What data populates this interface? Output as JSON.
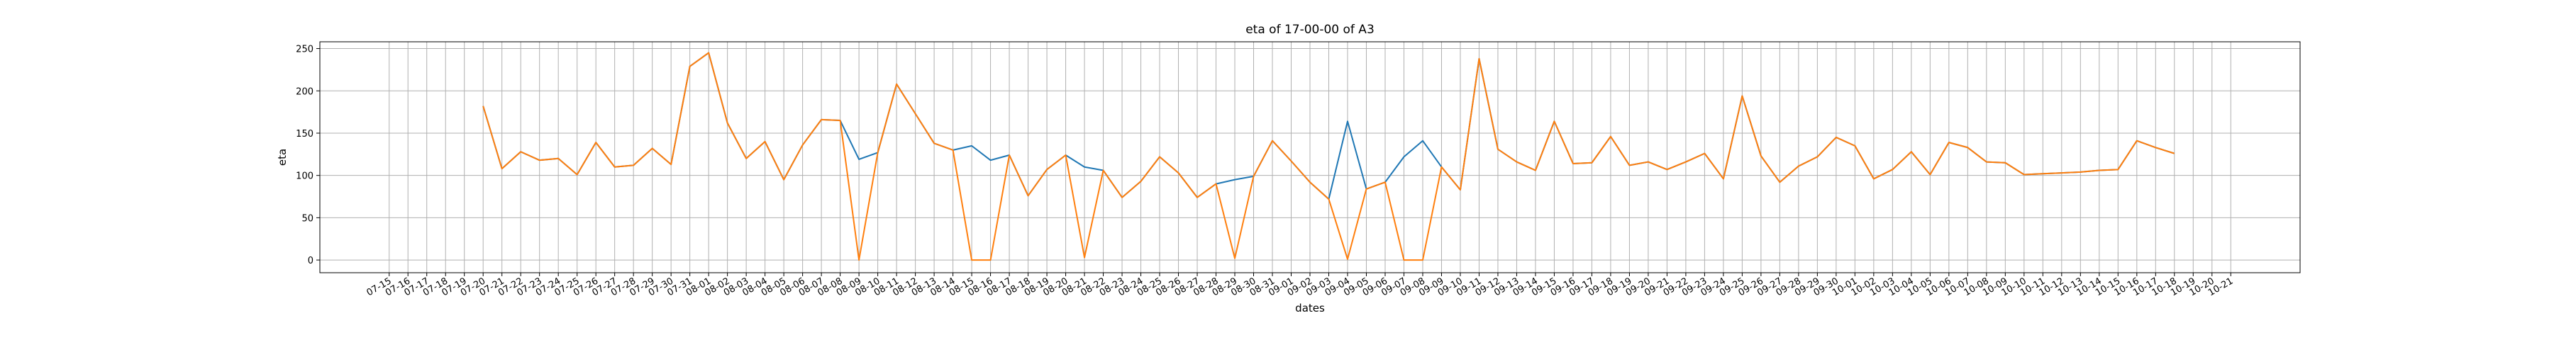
{
  "chart_data": {
    "type": "line",
    "title": "eta of 17-00-00 of A3",
    "xlabel": "dates",
    "ylabel": "eta",
    "grid": true,
    "ylim": [
      -15,
      258
    ],
    "yticks": [
      0,
      50,
      100,
      150,
      200,
      250
    ],
    "categories": [
      "07-15",
      "07-16",
      "07-17",
      "07-18",
      "07-19",
      "07-20",
      "07-21",
      "07-22",
      "07-23",
      "07-24",
      "07-25",
      "07-26",
      "07-27",
      "07-28",
      "07-29",
      "07-30",
      "07-31",
      "08-01",
      "08-02",
      "08-03",
      "08-04",
      "08-05",
      "08-06",
      "08-07",
      "08-08",
      "08-09",
      "08-10",
      "08-11",
      "08-12",
      "08-13",
      "08-14",
      "08-15",
      "08-16",
      "08-17",
      "08-18",
      "08-19",
      "08-20",
      "08-21",
      "08-22",
      "08-23",
      "08-24",
      "08-25",
      "08-26",
      "08-27",
      "08-28",
      "08-29",
      "08-30",
      "08-31",
      "09-01",
      "09-02",
      "09-03",
      "09-04",
      "09-05",
      "09-06",
      "09-07",
      "09-08",
      "09-09",
      "09-10",
      "09-11",
      "09-12",
      "09-13",
      "09-14",
      "09-15",
      "09-16",
      "09-17",
      "09-18",
      "09-19",
      "09-20",
      "09-21",
      "09-22",
      "09-23",
      "09-24",
      "09-25",
      "09-26",
      "09-27",
      "09-28",
      "09-29",
      "09-30",
      "10-01",
      "10-02",
      "10-03",
      "10-04",
      "10-05",
      "10-06",
      "10-07",
      "10-08",
      "10-09",
      "10-10",
      "10-11",
      "10-12",
      "10-13",
      "10-14",
      "10-15",
      "10-16",
      "10-17",
      "10-18",
      "10-19",
      "10-20",
      "10-21"
    ],
    "series": [
      {
        "color": "#1f77b4",
        "values": [
          null,
          null,
          null,
          null,
          null,
          182,
          108,
          128,
          118,
          120,
          101,
          139,
          110,
          112,
          132,
          113,
          229,
          245,
          162,
          120,
          140,
          95,
          136,
          166,
          165,
          119,
          127,
          208,
          173,
          138,
          130,
          135,
          118,
          124,
          76,
          107,
          124,
          110,
          106,
          74,
          93,
          122,
          103,
          74,
          90,
          95,
          99,
          141,
          117,
          92,
          72,
          164,
          84,
          92,
          122,
          141,
          110,
          83,
          238,
          131,
          116,
          106,
          164,
          114,
          115,
          146,
          112,
          116,
          107,
          116,
          126,
          96,
          194,
          123,
          92,
          111,
          122,
          145,
          135,
          96,
          107,
          128,
          101,
          139,
          133,
          116,
          115,
          101,
          102,
          103,
          104,
          106,
          107,
          141,
          133,
          126,
          null,
          null,
          null
        ]
      },
      {
        "color": "#ff7f0e",
        "values": [
          null,
          null,
          null,
          null,
          null,
          182,
          108,
          128,
          118,
          120,
          101,
          139,
          110,
          112,
          132,
          113,
          229,
          245,
          162,
          120,
          140,
          95,
          136,
          166,
          165,
          0,
          127,
          208,
          173,
          138,
          130,
          0,
          0,
          124,
          76,
          107,
          124,
          3,
          106,
          74,
          93,
          122,
          103,
          74,
          90,
          2,
          99,
          141,
          117,
          92,
          72,
          1,
          84,
          92,
          0,
          0,
          110,
          83,
          238,
          131,
          116,
          106,
          164,
          114,
          115,
          146,
          112,
          116,
          107,
          116,
          126,
          96,
          194,
          123,
          92,
          111,
          122,
          145,
          135,
          96,
          107,
          128,
          101,
          139,
          133,
          116,
          115,
          101,
          102,
          103,
          104,
          106,
          107,
          141,
          133,
          126,
          null,
          null,
          null
        ]
      }
    ]
  }
}
